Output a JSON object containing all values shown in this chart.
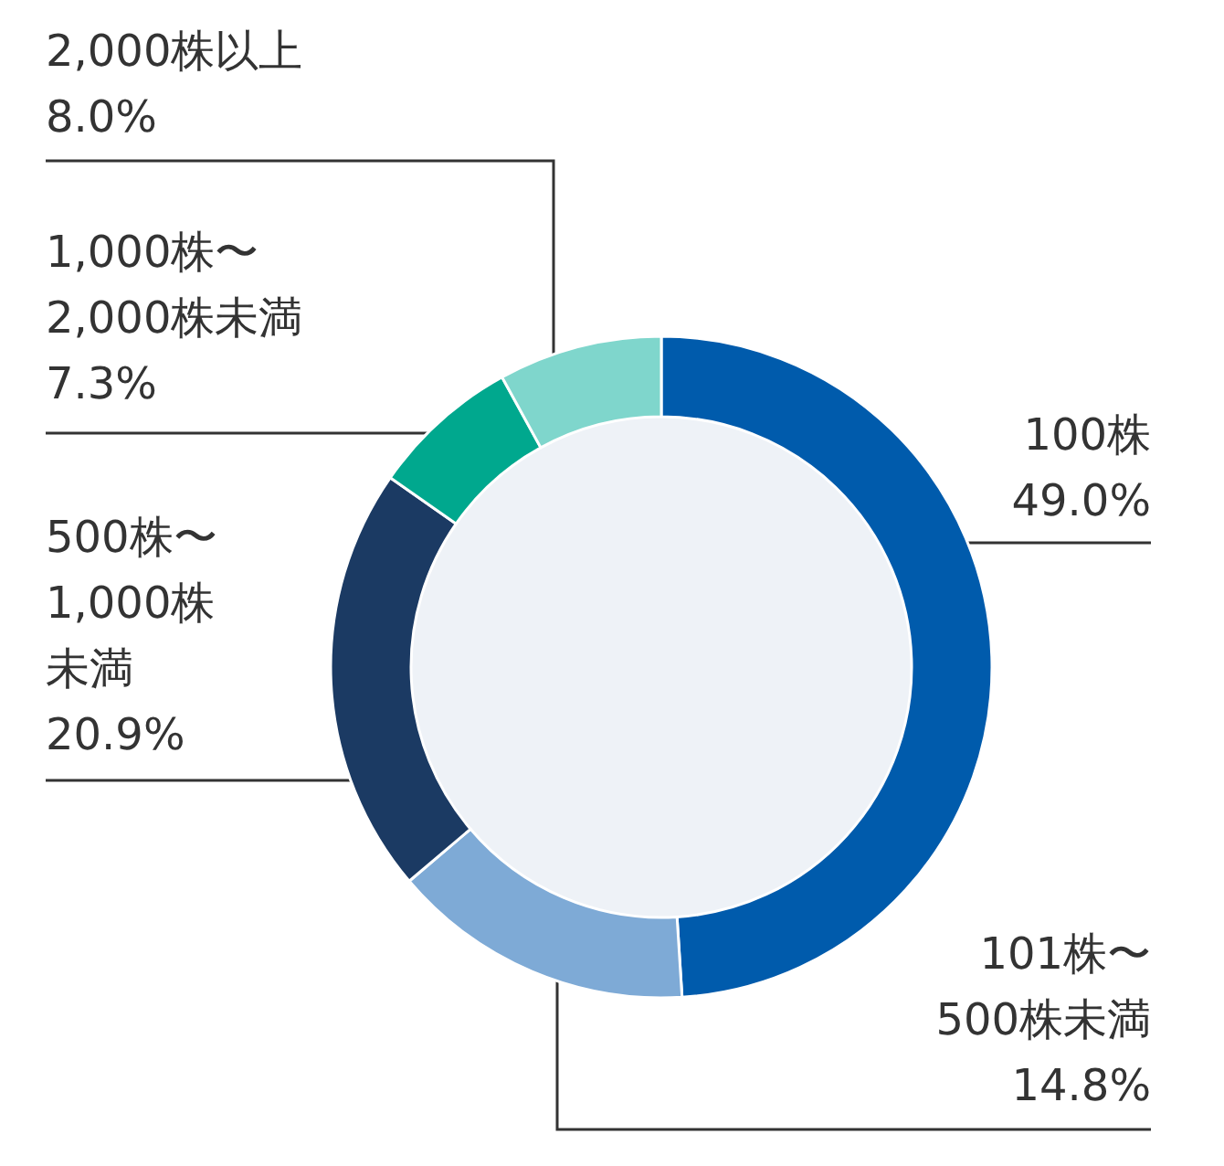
{
  "chart_data": {
    "type": "donut",
    "categories": [
      "100株",
      "101株〜500株未満",
      "500株〜1,000株未満",
      "1,000株〜2,000株未満",
      "2,000株以上"
    ],
    "values": [
      49.0,
      14.8,
      20.9,
      7.3,
      8.0
    ],
    "value_labels": [
      "49.0%",
      "14.8%",
      "20.9%",
      "7.3%",
      "8.0%"
    ],
    "colors": [
      "#005bac",
      "#7eaad6",
      "#1b3a63",
      "#00a88e",
      "#7fd6cc"
    ],
    "legend": false
  }
}
